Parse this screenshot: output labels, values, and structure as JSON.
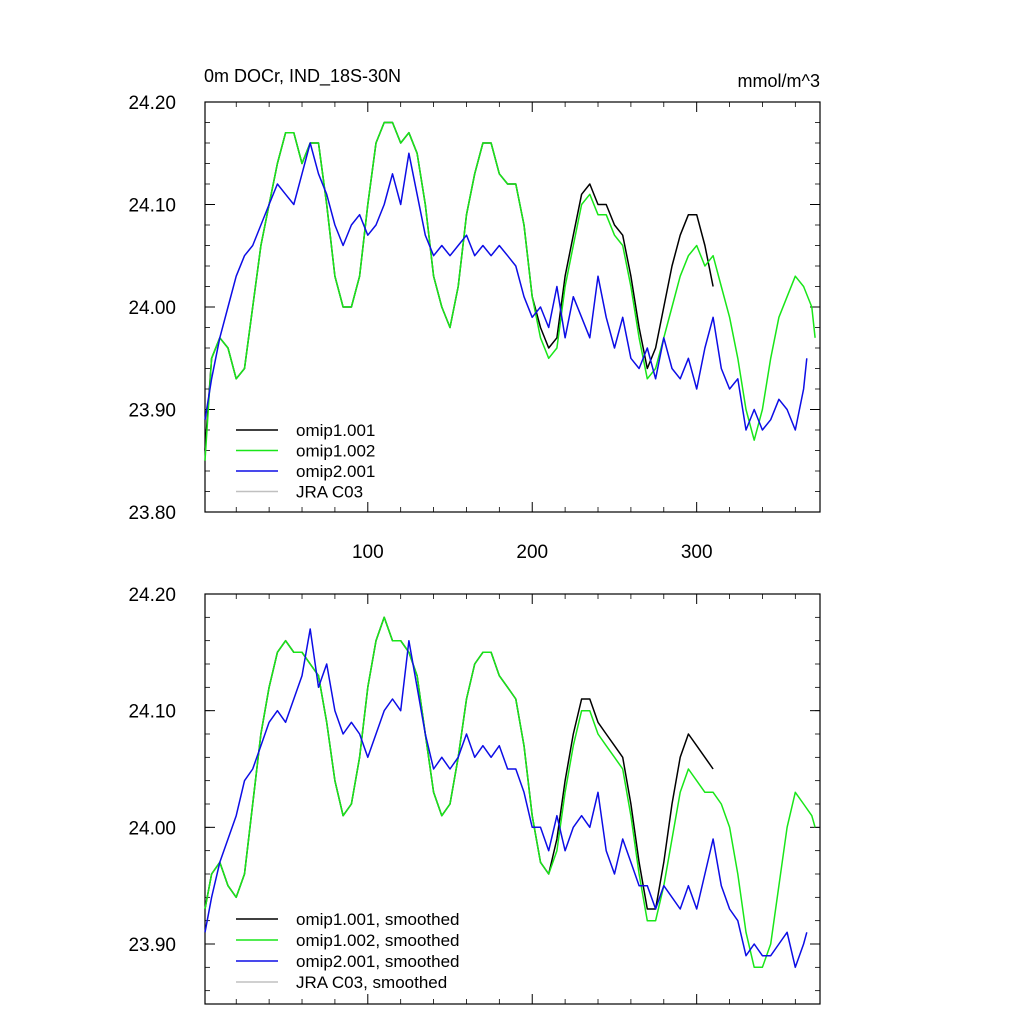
{
  "chart_data": [
    {
      "type": "line",
      "title": "0m DOCr, IND_18S-30N",
      "units": "mmol/m^3",
      "xlabel": "",
      "ylabel": "",
      "xlim": [
        1,
        375
      ],
      "ylim": [
        23.8,
        24.2
      ],
      "xticks": [
        100,
        200,
        300
      ],
      "xtick_labels": [
        "100",
        "200",
        "300"
      ],
      "yticks": [
        23.8,
        23.9,
        24.0,
        24.1,
        24.2
      ],
      "ytick_labels": [
        "23.80",
        "23.90",
        "24.00",
        "24.10",
        "24.20"
      ],
      "legend_position": "bottom-left",
      "series": [
        {
          "name": "omip1.001",
          "color": "#000000",
          "x": [
            1,
            5,
            10,
            15,
            20,
            25,
            30,
            35,
            40,
            45,
            50,
            55,
            60,
            65,
            70,
            75,
            80,
            85,
            90,
            95,
            100,
            105,
            110,
            115,
            120,
            125,
            130,
            135,
            140,
            145,
            150,
            155,
            160,
            165,
            170,
            175,
            180,
            185,
            190,
            195,
            200,
            205,
            210,
            215,
            220,
            225,
            230,
            235,
            240,
            245,
            250,
            255,
            260,
            265,
            270,
            275,
            280,
            285,
            290,
            295,
            300,
            305,
            310
          ],
          "values": [
            23.86,
            23.95,
            23.97,
            23.96,
            23.93,
            23.94,
            24.0,
            24.06,
            24.1,
            24.14,
            24.17,
            24.17,
            24.14,
            24.16,
            24.16,
            24.1,
            24.03,
            24.0,
            24.0,
            24.03,
            24.1,
            24.16,
            24.18,
            24.18,
            24.16,
            24.17,
            24.15,
            24.1,
            24.03,
            24.0,
            23.98,
            24.02,
            24.09,
            24.13,
            24.16,
            24.16,
            24.13,
            24.12,
            24.12,
            24.08,
            24.01,
            23.98,
            23.96,
            23.97,
            24.03,
            24.07,
            24.11,
            24.12,
            24.1,
            24.1,
            24.08,
            24.07,
            24.03,
            23.98,
            23.94,
            23.96,
            24.0,
            24.04,
            24.07,
            24.09,
            24.09,
            24.06,
            24.02
          ]
        },
        {
          "name": "omip1.002",
          "color": "#19e619",
          "x": [
            1,
            5,
            10,
            15,
            20,
            25,
            30,
            35,
            40,
            45,
            50,
            55,
            60,
            65,
            70,
            75,
            80,
            85,
            90,
            95,
            100,
            105,
            110,
            115,
            120,
            125,
            130,
            135,
            140,
            145,
            150,
            155,
            160,
            165,
            170,
            175,
            180,
            185,
            190,
            195,
            200,
            205,
            210,
            215,
            220,
            225,
            230,
            235,
            240,
            245,
            250,
            255,
            260,
            265,
            270,
            275,
            280,
            285,
            290,
            295,
            300,
            305,
            310,
            315,
            320,
            325,
            330,
            335,
            340,
            345,
            350,
            355,
            360,
            365,
            370,
            372
          ],
          "values": [
            23.85,
            23.95,
            23.97,
            23.96,
            23.93,
            23.94,
            24.0,
            24.06,
            24.1,
            24.14,
            24.17,
            24.17,
            24.14,
            24.16,
            24.16,
            24.1,
            24.03,
            24.0,
            24.0,
            24.03,
            24.1,
            24.16,
            24.18,
            24.18,
            24.16,
            24.17,
            24.15,
            24.1,
            24.03,
            24.0,
            23.98,
            24.02,
            24.09,
            24.13,
            24.16,
            24.16,
            24.13,
            24.12,
            24.12,
            24.08,
            24.01,
            23.97,
            23.95,
            23.96,
            24.02,
            24.06,
            24.1,
            24.11,
            24.09,
            24.09,
            24.07,
            24.06,
            24.02,
            23.97,
            23.93,
            23.94,
            23.97,
            24.0,
            24.03,
            24.05,
            24.06,
            24.04,
            24.05,
            24.02,
            23.99,
            23.95,
            23.9,
            23.87,
            23.9,
            23.95,
            23.99,
            24.01,
            24.03,
            24.02,
            24.0,
            23.97
          ]
        },
        {
          "name": "omip2.001",
          "color": "#0d0de6",
          "x": [
            1,
            5,
            10,
            15,
            20,
            25,
            30,
            35,
            40,
            45,
            50,
            55,
            60,
            65,
            70,
            75,
            80,
            85,
            90,
            95,
            100,
            105,
            110,
            115,
            120,
            125,
            130,
            135,
            140,
            145,
            150,
            155,
            160,
            165,
            170,
            175,
            180,
            185,
            190,
            195,
            200,
            205,
            210,
            215,
            220,
            225,
            230,
            235,
            240,
            245,
            250,
            255,
            260,
            265,
            270,
            275,
            280,
            285,
            290,
            295,
            300,
            305,
            310,
            315,
            320,
            325,
            330,
            335,
            340,
            345,
            350,
            355,
            360,
            365,
            367
          ],
          "values": [
            23.89,
            23.93,
            23.97,
            24.0,
            24.03,
            24.05,
            24.06,
            24.08,
            24.1,
            24.12,
            24.11,
            24.1,
            24.13,
            24.16,
            24.13,
            24.11,
            24.08,
            24.06,
            24.08,
            24.09,
            24.07,
            24.08,
            24.1,
            24.13,
            24.1,
            24.15,
            24.11,
            24.07,
            24.05,
            24.06,
            24.05,
            24.06,
            24.07,
            24.05,
            24.06,
            24.05,
            24.06,
            24.05,
            24.04,
            24.01,
            23.99,
            24.0,
            23.98,
            24.02,
            23.97,
            24.01,
            23.99,
            23.97,
            24.03,
            23.99,
            23.96,
            23.99,
            23.95,
            23.94,
            23.96,
            23.93,
            23.97,
            23.94,
            23.93,
            23.95,
            23.92,
            23.96,
            23.99,
            23.94,
            23.92,
            23.93,
            23.88,
            23.9,
            23.88,
            23.89,
            23.91,
            23.9,
            23.88,
            23.92,
            23.95
          ]
        },
        {
          "name": "JRA C03",
          "color": "#c0c0c0",
          "x": [],
          "values": []
        }
      ]
    },
    {
      "type": "line",
      "title": "",
      "xlabel": "",
      "ylabel": "",
      "xlim": [
        1,
        375
      ],
      "ylim": [
        23.85,
        24.2
      ],
      "yticks": [
        23.9,
        24.0,
        24.1,
        24.2
      ],
      "ytick_labels": [
        "23.90",
        "24.00",
        "24.10",
        "24.20"
      ],
      "legend_position": "bottom-left",
      "series": [
        {
          "name": "omip1.001, smoothed",
          "color": "#000000",
          "x": [
            1,
            5,
            10,
            15,
            20,
            25,
            30,
            35,
            40,
            45,
            50,
            55,
            60,
            65,
            70,
            75,
            80,
            85,
            90,
            95,
            100,
            105,
            110,
            115,
            120,
            125,
            130,
            135,
            140,
            145,
            150,
            155,
            160,
            165,
            170,
            175,
            180,
            185,
            190,
            195,
            200,
            205,
            210,
            215,
            220,
            225,
            230,
            235,
            240,
            245,
            250,
            255,
            260,
            265,
            270,
            275,
            280,
            285,
            290,
            295,
            300,
            305,
            310
          ],
          "values": [
            23.93,
            23.96,
            23.97,
            23.95,
            23.94,
            23.96,
            24.02,
            24.08,
            24.12,
            24.15,
            24.16,
            24.15,
            24.15,
            24.14,
            24.13,
            24.09,
            24.04,
            24.01,
            24.02,
            24.06,
            24.12,
            24.16,
            24.18,
            24.16,
            24.16,
            24.15,
            24.13,
            24.08,
            24.03,
            24.01,
            24.02,
            24.06,
            24.11,
            24.14,
            24.15,
            24.15,
            24.13,
            24.12,
            24.11,
            24.07,
            24.01,
            23.97,
            23.96,
            23.99,
            24.04,
            24.08,
            24.11,
            24.11,
            24.09,
            24.08,
            24.07,
            24.06,
            24.02,
            23.97,
            23.93,
            23.93,
            23.97,
            24.02,
            24.06,
            24.08,
            24.07,
            24.06,
            24.05
          ]
        },
        {
          "name": "omip1.002, smoothed",
          "color": "#19e619",
          "x": [
            1,
            5,
            10,
            15,
            20,
            25,
            30,
            35,
            40,
            45,
            50,
            55,
            60,
            65,
            70,
            75,
            80,
            85,
            90,
            95,
            100,
            105,
            110,
            115,
            120,
            125,
            130,
            135,
            140,
            145,
            150,
            155,
            160,
            165,
            170,
            175,
            180,
            185,
            190,
            195,
            200,
            205,
            210,
            215,
            220,
            225,
            230,
            235,
            240,
            245,
            250,
            255,
            260,
            265,
            270,
            275,
            280,
            285,
            290,
            295,
            300,
            305,
            310,
            315,
            320,
            325,
            330,
            335,
            340,
            345,
            350,
            355,
            360,
            365,
            370,
            372
          ],
          "values": [
            23.93,
            23.96,
            23.97,
            23.95,
            23.94,
            23.96,
            24.02,
            24.08,
            24.12,
            24.15,
            24.16,
            24.15,
            24.15,
            24.14,
            24.13,
            24.09,
            24.04,
            24.01,
            24.02,
            24.06,
            24.12,
            24.16,
            24.18,
            24.16,
            24.16,
            24.15,
            24.13,
            24.08,
            24.03,
            24.01,
            24.02,
            24.06,
            24.11,
            24.14,
            24.15,
            24.15,
            24.13,
            24.12,
            24.11,
            24.07,
            24.01,
            23.97,
            23.96,
            23.98,
            24.03,
            24.07,
            24.1,
            24.1,
            24.08,
            24.07,
            24.06,
            24.05,
            24.01,
            23.96,
            23.92,
            23.92,
            23.95,
            23.99,
            24.03,
            24.05,
            24.04,
            24.03,
            24.03,
            24.02,
            24.0,
            23.96,
            23.91,
            23.88,
            23.88,
            23.9,
            23.95,
            24.0,
            24.03,
            24.02,
            24.01,
            24.0
          ]
        },
        {
          "name": "omip2.001, smoothed",
          "color": "#0d0de6",
          "x": [
            1,
            5,
            10,
            15,
            20,
            25,
            30,
            35,
            40,
            45,
            50,
            55,
            60,
            65,
            70,
            75,
            80,
            85,
            90,
            95,
            100,
            105,
            110,
            115,
            120,
            125,
            130,
            135,
            140,
            145,
            150,
            155,
            160,
            165,
            170,
            175,
            180,
            185,
            190,
            195,
            200,
            205,
            210,
            215,
            220,
            225,
            230,
            235,
            240,
            245,
            250,
            255,
            260,
            265,
            270,
            275,
            280,
            285,
            290,
            295,
            300,
            305,
            310,
            315,
            320,
            325,
            330,
            335,
            340,
            345,
            350,
            355,
            360,
            365,
            367
          ],
          "values": [
            23.91,
            23.94,
            23.97,
            23.99,
            24.01,
            24.04,
            24.05,
            24.07,
            24.09,
            24.1,
            24.09,
            24.11,
            24.13,
            24.17,
            24.12,
            24.14,
            24.1,
            24.08,
            24.09,
            24.08,
            24.06,
            24.08,
            24.1,
            24.11,
            24.1,
            24.16,
            24.12,
            24.08,
            24.05,
            24.06,
            24.05,
            24.06,
            24.08,
            24.06,
            24.07,
            24.06,
            24.07,
            24.05,
            24.05,
            24.03,
            24.0,
            24.0,
            23.98,
            24.01,
            23.98,
            24.0,
            24.01,
            24.0,
            24.03,
            23.98,
            23.96,
            23.99,
            23.97,
            23.95,
            23.95,
            23.93,
            23.95,
            23.94,
            23.93,
            23.95,
            23.93,
            23.96,
            23.99,
            23.95,
            23.93,
            23.92,
            23.89,
            23.9,
            23.89,
            23.89,
            23.9,
            23.91,
            23.88,
            23.9,
            23.91
          ]
        },
        {
          "name": "JRA C03, smoothed",
          "color": "#c0c0c0",
          "x": [],
          "values": []
        }
      ]
    }
  ]
}
